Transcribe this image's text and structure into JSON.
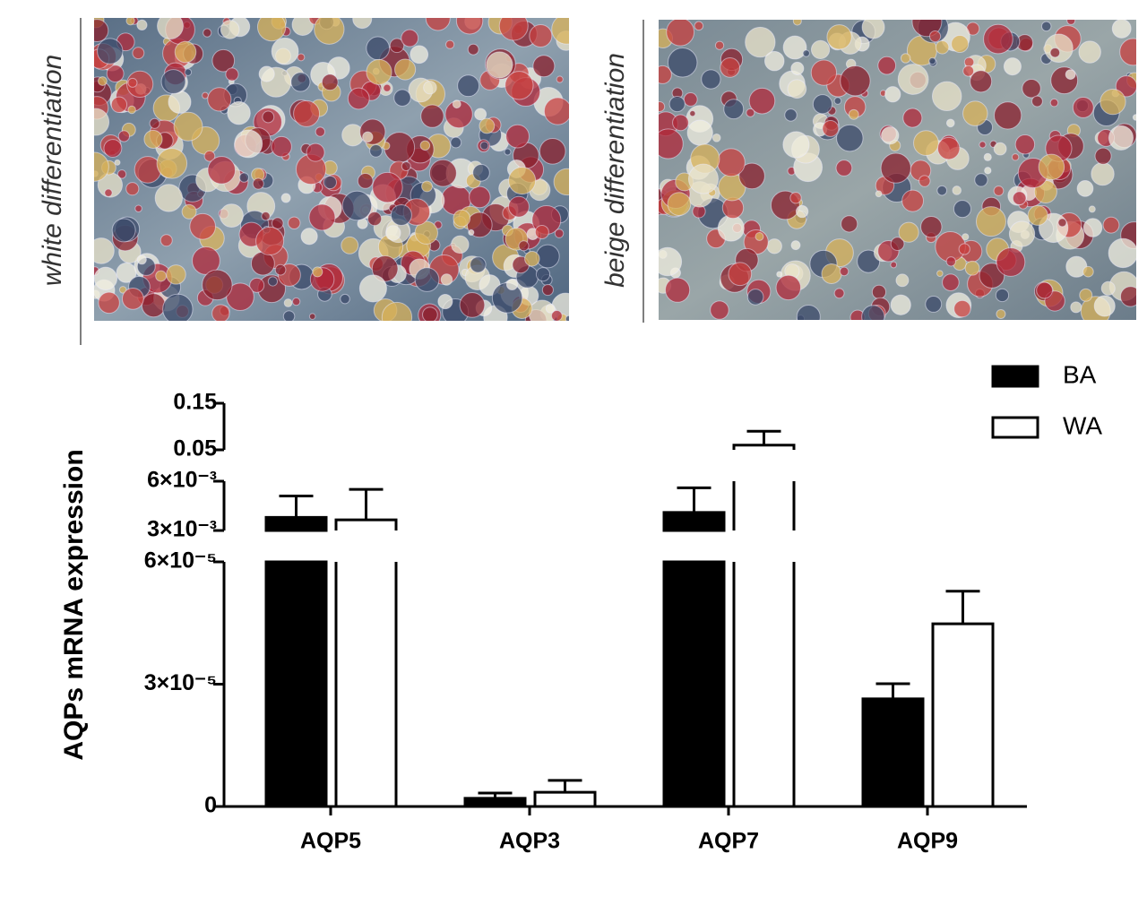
{
  "panels": [
    {
      "label": "white differentiation"
    },
    {
      "label": "beige differentiation"
    }
  ],
  "chart_data": {
    "type": "bar",
    "y_label": "AQPs mRNA expression",
    "categories": [
      "AQP5",
      "AQP3",
      "AQP7",
      "AQP9"
    ],
    "series": [
      {
        "name": "BA",
        "color": "#000000",
        "values": [
          0.0038,
          2e-06,
          0.0041,
          2.64e-05
        ],
        "errors": [
          0.0013,
          1.3e-06,
          0.0015,
          3.7e-06
        ]
      },
      {
        "name": "WA",
        "color": "#ffffff",
        "values": [
          0.00365,
          3.5e-06,
          0.06,
          4.48e-05
        ],
        "errors": [
          0.00185,
          2.9e-06,
          0.03,
          8e-06
        ]
      }
    ],
    "y_segments": [
      {
        "ylim": [
          0,
          6e-05
        ],
        "yticks": [
          0,
          {
            "value": 3e-05,
            "label": "3×10⁻⁵"
          },
          {
            "value": 6e-05,
            "label": "6×10⁻⁵"
          }
        ]
      },
      {
        "ylim": [
          0.003,
          0.006
        ],
        "yticks": [
          {
            "value": 0.003,
            "label": "3×10⁻³"
          },
          {
            "value": 0.006,
            "label": "6×10⁻³"
          }
        ]
      },
      {
        "ylim": [
          0.05,
          0.15
        ],
        "yticks": [
          0.05,
          0.15
        ]
      }
    ],
    "legend": "top-right"
  }
}
